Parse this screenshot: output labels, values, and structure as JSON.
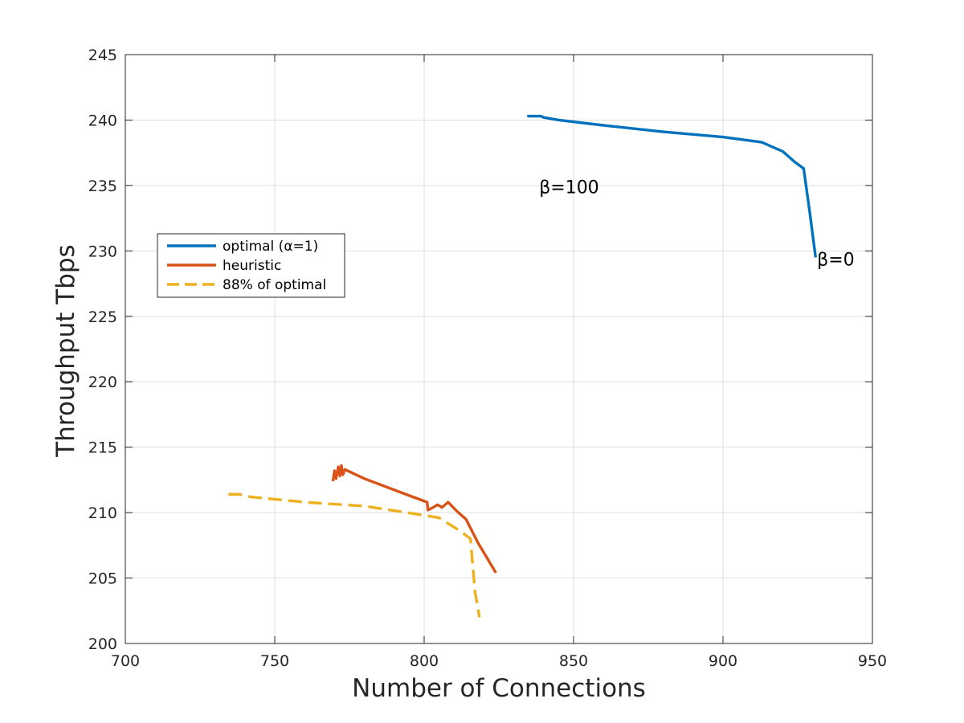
{
  "chart_data": {
    "type": "line",
    "xlabel": "Number of Connections",
    "ylabel": "Throughput Tbps",
    "xlim": [
      700,
      950
    ],
    "ylim": [
      200,
      245
    ],
    "xticks": [
      700,
      750,
      800,
      850,
      900,
      950
    ],
    "yticks": [
      200,
      205,
      210,
      215,
      220,
      225,
      230,
      235,
      240,
      245
    ],
    "grid": true,
    "legend": {
      "position": "middle-left"
    },
    "series": [
      {
        "name": "optimal (α=1)",
        "color": "#0072BD",
        "dash": "solid",
        "points": [
          [
            834.5,
            240.3
          ],
          [
            839,
            240.3
          ],
          [
            840,
            240.2
          ],
          [
            845,
            240.0
          ],
          [
            860,
            239.6
          ],
          [
            880,
            239.1
          ],
          [
            900,
            238.7
          ],
          [
            913,
            238.3
          ],
          [
            916,
            238.0
          ],
          [
            920,
            237.6
          ],
          [
            924,
            236.8
          ],
          [
            927,
            236.3
          ],
          [
            929,
            233.0
          ],
          [
            931,
            229.5
          ]
        ]
      },
      {
        "name": "heuristic",
        "color": "#D95319",
        "dash": "solid",
        "points": [
          [
            769.5,
            212.4
          ],
          [
            770,
            213.2
          ],
          [
            770.5,
            212.6
          ],
          [
            771.3,
            213.5
          ],
          [
            771.8,
            212.8
          ],
          [
            772.3,
            213.6
          ],
          [
            772.8,
            212.9
          ],
          [
            773.5,
            213.3
          ],
          [
            780,
            212.6
          ],
          [
            795,
            211.3
          ],
          [
            801,
            210.8
          ],
          [
            801.3,
            210.2
          ],
          [
            803,
            210.4
          ],
          [
            804.5,
            210.6
          ],
          [
            806,
            210.4
          ],
          [
            808,
            210.8
          ],
          [
            811,
            210.1
          ],
          [
            814,
            209.5
          ],
          [
            818,
            207.7
          ],
          [
            824,
            205.4
          ]
        ]
      },
      {
        "name": "88% of optimal",
        "color": "#EDB120",
        "dash": "dashed",
        "points": [
          [
            734.5,
            211.4
          ],
          [
            738,
            211.4
          ],
          [
            742,
            211.2
          ],
          [
            760,
            210.8
          ],
          [
            780,
            210.5
          ],
          [
            800,
            209.8
          ],
          [
            805,
            209.6
          ],
          [
            812,
            208.6
          ],
          [
            815.5,
            208.0
          ],
          [
            817,
            204.0
          ],
          [
            818.5,
            202.0
          ]
        ]
      }
    ],
    "annotations": [
      {
        "text": "β=100",
        "x": 838.5,
        "y": 234.4
      },
      {
        "text": "β=0",
        "x": 931.5,
        "y": 228.9
      }
    ]
  }
}
